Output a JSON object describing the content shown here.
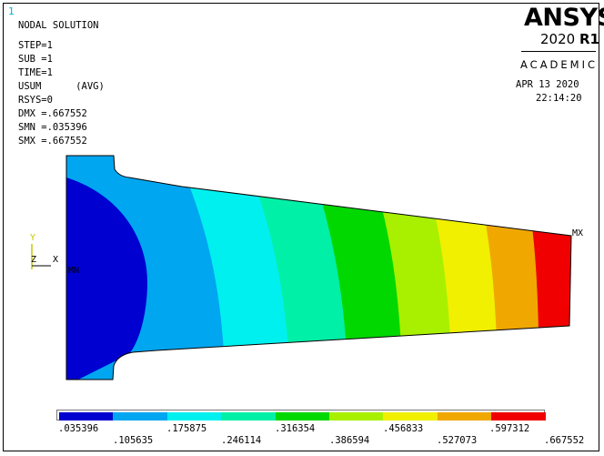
{
  "window_number": "1",
  "info": {
    "title": "NODAL SOLUTION",
    "step": "STEP=1",
    "sub": "SUB =1",
    "time": "TIME=1",
    "usum": "USUM      (AVG)",
    "rsys": "RSYS=0",
    "dmx": "DMX =.667552",
    "smn": "SMN =.035396",
    "smx": "SMX =.667552"
  },
  "logo": {
    "name": "ANSYS",
    "version_year": "2020",
    "version_release": "R1",
    "edition": "ACADEMIC"
  },
  "date": "APR 13 2020",
  "time": "22:14:20",
  "markers": {
    "max": "MX",
    "min": "MN"
  },
  "triad": {
    "y": "Y",
    "z": "Z",
    "x": "X"
  },
  "legend": {
    "colors": [
      "#0000d0",
      "#00a6f0",
      "#00f0f0",
      "#00f0a8",
      "#00d800",
      "#a8f000",
      "#f0f000",
      "#f0a800",
      "#f00000"
    ],
    "labels_upper": [
      ".035396",
      ".175875",
      ".316354",
      ".456833",
      ".597312"
    ],
    "labels_lower": [
      ".105635",
      ".246114",
      ".386594",
      ".527073",
      ".667552"
    ]
  },
  "contour_colors": {
    "band1": "#0000d0",
    "band2": "#00a6f0",
    "band3": "#00f0f0",
    "band4": "#00f0a8",
    "band5": "#00d800",
    "band6": "#a8f000",
    "band7": "#f0f000",
    "band8": "#f0a800",
    "band9": "#f00000"
  }
}
